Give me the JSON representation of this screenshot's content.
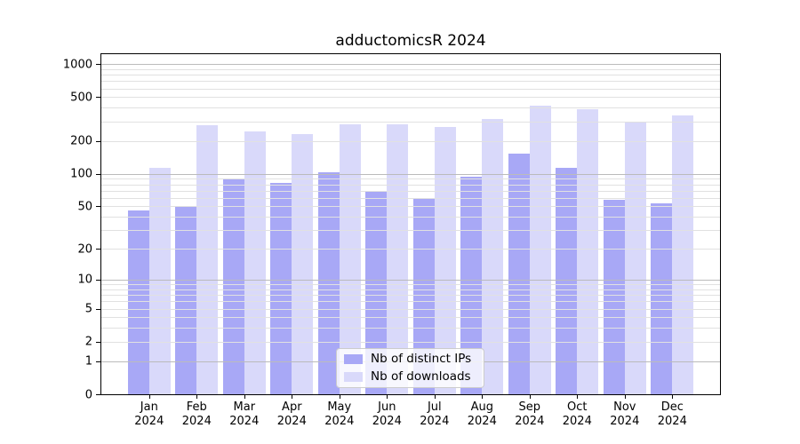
{
  "title": "adductomicsR 2024",
  "chart_data": {
    "type": "bar",
    "title": "adductomicsR 2024",
    "categories": [
      "Jan",
      "Feb",
      "Mar",
      "Apr",
      "May",
      "Jun",
      "Jul",
      "Aug",
      "Sep",
      "Oct",
      "Nov",
      "Dec"
    ],
    "year": "2024",
    "series": [
      {
        "name": "Nb of distinct IPs",
        "color": "#a8a8f6",
        "values": [
          46,
          50,
          90,
          83,
          104,
          68,
          60,
          94,
          152,
          114,
          58,
          53
        ]
      },
      {
        "name": "Nb of downloads",
        "color": "#d9d9fa",
        "values": [
          113,
          280,
          242,
          232,
          284,
          284,
          266,
          316,
          420,
          388,
          294,
          343
        ]
      }
    ],
    "yscale": "log1p",
    "ylim": [
      0,
      1230
    ],
    "yticks": [
      0,
      1,
      2,
      5,
      10,
      20,
      50,
      100,
      200,
      500,
      1000
    ],
    "grid": "horizontal, major at powers of 10, minor at 2-9 steps",
    "legend_position": "lower center inside plot"
  },
  "colors": {
    "bar_distinct_ips": "#a8a8f6",
    "bar_downloads": "#d9d9fa",
    "grid_major": "#bbbbbb",
    "grid_minor": "#e1e1e1",
    "spine": "#000000",
    "background": "#ffffff",
    "text": "#000000"
  }
}
